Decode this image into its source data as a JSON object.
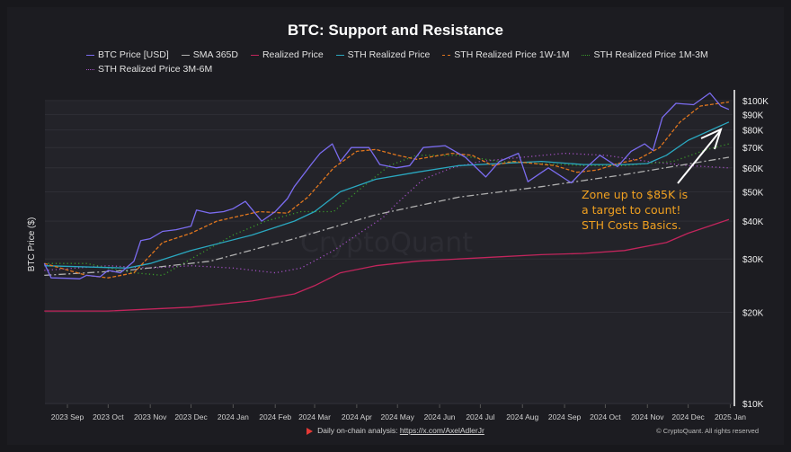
{
  "chart_data": {
    "type": "line",
    "title": "BTC: Support and Resistance",
    "ylabel": "BTC Price ($)",
    "xlabel": "",
    "yscale": "log",
    "ylim": [
      10000,
      110000
    ],
    "grid": true,
    "legend_placement": "top",
    "y_ticks": [
      {
        "v": 10000,
        "label": "$10K"
      },
      {
        "v": 20000,
        "label": "$20K"
      },
      {
        "v": 30000,
        "label": "$30K"
      },
      {
        "v": 40000,
        "label": "$40K"
      },
      {
        "v": 50000,
        "label": "$50K"
      },
      {
        "v": 60000,
        "label": "$60K"
      },
      {
        "v": 70000,
        "label": "$70K"
      },
      {
        "v": 80000,
        "label": "$80K"
      },
      {
        "v": 90000,
        "label": "$90K"
      },
      {
        "v": 100000,
        "label": "$100K"
      }
    ],
    "x_ticks": [
      {
        "d": "2023-09-01",
        "label": "2023 Sep"
      },
      {
        "d": "2023-10-01",
        "label": "2023 Oct"
      },
      {
        "d": "2023-11-01",
        "label": "2023 Nov"
      },
      {
        "d": "2023-12-01",
        "label": "2023 Dec"
      },
      {
        "d": "2024-01-01",
        "label": "2024 Jan"
      },
      {
        "d": "2024-02-01",
        "label": "2024 Feb"
      },
      {
        "d": "2024-03-01",
        "label": "2024 Mar"
      },
      {
        "d": "2024-04-01",
        "label": "2024 Apr"
      },
      {
        "d": "2024-05-01",
        "label": "2024 May"
      },
      {
        "d": "2024-06-01",
        "label": "2024 Jun"
      },
      {
        "d": "2024-07-01",
        "label": "2024 Jul"
      },
      {
        "d": "2024-08-01",
        "label": "2024 Aug"
      },
      {
        "d": "2024-09-01",
        "label": "2024 Sep"
      },
      {
        "d": "2024-10-01",
        "label": "2024 Oct"
      },
      {
        "d": "2024-11-01",
        "label": "2024 Nov"
      },
      {
        "d": "2024-12-01",
        "label": "2024 Dec"
      },
      {
        "d": "2025-01-01",
        "label": "2025 Jan"
      }
    ],
    "series": [
      {
        "name": "STH Realized Price 3M-6M",
        "color": "#a04fc0",
        "style": "dotted",
        "points": [
          [
            "2023-08-15",
            27500
          ],
          [
            "2023-10-01",
            28500
          ],
          [
            "2023-11-01",
            28000
          ],
          [
            "2023-12-01",
            28500
          ],
          [
            "2024-01-01",
            28000
          ],
          [
            "2024-02-01",
            27000
          ],
          [
            "2024-02-20",
            28000
          ],
          [
            "2024-03-15",
            32000
          ],
          [
            "2024-04-01",
            36000
          ],
          [
            "2024-04-20",
            41000
          ],
          [
            "2024-05-01",
            46000
          ],
          [
            "2024-05-20",
            55000
          ],
          [
            "2024-06-10",
            60000
          ],
          [
            "2024-07-01",
            63000
          ],
          [
            "2024-08-01",
            65000
          ],
          [
            "2024-09-01",
            67000
          ],
          [
            "2024-10-01",
            66000
          ],
          [
            "2024-11-01",
            63000
          ],
          [
            "2024-12-01",
            61000
          ],
          [
            "2024-12-31",
            60000
          ]
        ]
      },
      {
        "name": "STH Realized Price 1M-3M",
        "color": "#3a9a2a",
        "style": "dotted",
        "points": [
          [
            "2023-08-15",
            29000
          ],
          [
            "2023-09-15",
            29000
          ],
          [
            "2023-10-01",
            28000
          ],
          [
            "2023-10-20",
            27000
          ],
          [
            "2023-11-10",
            26500
          ],
          [
            "2023-12-01",
            30000
          ],
          [
            "2024-01-01",
            36000
          ],
          [
            "2024-01-25",
            40000
          ],
          [
            "2024-02-20",
            43000
          ],
          [
            "2024-03-15",
            43000
          ],
          [
            "2024-04-01",
            50000
          ],
          [
            "2024-04-25",
            61000
          ],
          [
            "2024-05-15",
            66000
          ],
          [
            "2024-06-15",
            66000
          ],
          [
            "2024-07-15",
            63000
          ],
          [
            "2024-08-15",
            62000
          ],
          [
            "2024-09-15",
            61000
          ],
          [
            "2024-10-15",
            61000
          ],
          [
            "2024-11-01",
            62000
          ],
          [
            "2024-11-20",
            63000
          ],
          [
            "2024-12-15",
            69000
          ],
          [
            "2024-12-31",
            72000
          ]
        ]
      },
      {
        "name": "SMA 365D",
        "color": "#b0b0b0",
        "style": "dashdot",
        "points": [
          [
            "2023-08-15",
            26500
          ],
          [
            "2023-10-15",
            27500
          ],
          [
            "2023-12-15",
            29500
          ],
          [
            "2024-02-15",
            35000
          ],
          [
            "2024-04-15",
            42000
          ],
          [
            "2024-06-15",
            48000
          ],
          [
            "2024-08-15",
            52000
          ],
          [
            "2024-10-15",
            57000
          ],
          [
            "2024-12-31",
            65000
          ]
        ]
      },
      {
        "name": "Realized Price",
        "color": "#c2255c",
        "style": "solid",
        "points": [
          [
            "2023-08-15",
            20200
          ],
          [
            "2023-10-01",
            20200
          ],
          [
            "2023-12-01",
            20800
          ],
          [
            "2024-01-15",
            21800
          ],
          [
            "2024-02-15",
            23000
          ],
          [
            "2024-03-01",
            24500
          ],
          [
            "2024-03-20",
            27000
          ],
          [
            "2024-04-15",
            28500
          ],
          [
            "2024-05-15",
            29500
          ],
          [
            "2024-06-15",
            30000
          ],
          [
            "2024-07-15",
            30500
          ],
          [
            "2024-08-15",
            31000
          ],
          [
            "2024-09-15",
            31300
          ],
          [
            "2024-10-15",
            32000
          ],
          [
            "2024-11-15",
            34000
          ],
          [
            "2024-12-01",
            36500
          ],
          [
            "2024-12-31",
            40500
          ]
        ]
      },
      {
        "name": "STH Realized Price",
        "color": "#2aa8c0",
        "style": "solid",
        "points": [
          [
            "2023-08-15",
            28500
          ],
          [
            "2023-10-15",
            28000
          ],
          [
            "2023-11-01",
            29000
          ],
          [
            "2023-12-01",
            32000
          ],
          [
            "2024-01-15",
            36000
          ],
          [
            "2024-02-15",
            40000
          ],
          [
            "2024-03-01",
            43000
          ],
          [
            "2024-03-20",
            50000
          ],
          [
            "2024-04-15",
            55000
          ],
          [
            "2024-05-15",
            58000
          ],
          [
            "2024-06-15",
            61000
          ],
          [
            "2024-07-15",
            62000
          ],
          [
            "2024-08-15",
            63000
          ],
          [
            "2024-09-15",
            61500
          ],
          [
            "2024-10-15",
            61500
          ],
          [
            "2024-11-01",
            62000
          ],
          [
            "2024-11-15",
            66000
          ],
          [
            "2024-12-01",
            74000
          ],
          [
            "2024-12-31",
            85000
          ]
        ]
      },
      {
        "name": "STH Realized Price 1W-1M",
        "color": "#e0761e",
        "style": "dashed",
        "points": [
          [
            "2023-08-15",
            29000
          ],
          [
            "2023-09-15",
            26500
          ],
          [
            "2023-10-01",
            26000
          ],
          [
            "2023-10-20",
            27000
          ],
          [
            "2023-11-10",
            34000
          ],
          [
            "2023-12-01",
            36500
          ],
          [
            "2023-12-20",
            40000
          ],
          [
            "2024-01-20",
            43000
          ],
          [
            "2024-02-10",
            42500
          ],
          [
            "2024-02-25",
            48000
          ],
          [
            "2024-03-15",
            60000
          ],
          [
            "2024-04-01",
            68000
          ],
          [
            "2024-04-15",
            69000
          ],
          [
            "2024-05-01",
            66000
          ],
          [
            "2024-05-15",
            64000
          ],
          [
            "2024-06-10",
            67000
          ],
          [
            "2024-06-25",
            66000
          ],
          [
            "2024-07-10",
            61000
          ],
          [
            "2024-07-25",
            63000
          ],
          [
            "2024-08-10",
            62000
          ],
          [
            "2024-08-25",
            61000
          ],
          [
            "2024-09-10",
            58000
          ],
          [
            "2024-09-25",
            59000
          ],
          [
            "2024-10-10",
            62000
          ],
          [
            "2024-10-25",
            64000
          ],
          [
            "2024-11-10",
            70000
          ],
          [
            "2024-11-25",
            85000
          ],
          [
            "2024-12-10",
            96000
          ],
          [
            "2024-12-31",
            99000
          ]
        ]
      },
      {
        "name": "BTC Price [USD]",
        "color": "#7b6cf0",
        "style": "solid",
        "points": [
          [
            "2023-08-15",
            29000
          ],
          [
            "2023-08-20",
            26000
          ],
          [
            "2023-09-01",
            25900
          ],
          [
            "2023-09-10",
            25800
          ],
          [
            "2023-09-15",
            26500
          ],
          [
            "2023-09-25",
            26200
          ],
          [
            "2023-10-01",
            27500
          ],
          [
            "2023-10-10",
            27000
          ],
          [
            "2023-10-20",
            29500
          ],
          [
            "2023-10-25",
            34500
          ],
          [
            "2023-11-01",
            35000
          ],
          [
            "2023-11-10",
            37000
          ],
          [
            "2023-11-20",
            37500
          ],
          [
            "2023-12-01",
            38500
          ],
          [
            "2023-12-05",
            43500
          ],
          [
            "2023-12-15",
            42500
          ],
          [
            "2023-12-25",
            43000
          ],
          [
            "2024-01-01",
            44000
          ],
          [
            "2024-01-10",
            46500
          ],
          [
            "2024-01-22",
            40000
          ],
          [
            "2024-02-01",
            43000
          ],
          [
            "2024-02-10",
            47500
          ],
          [
            "2024-02-15",
            52000
          ],
          [
            "2024-02-28",
            62000
          ],
          [
            "2024-03-05",
            67000
          ],
          [
            "2024-03-14",
            72000
          ],
          [
            "2024-03-20",
            63000
          ],
          [
            "2024-03-28",
            70000
          ],
          [
            "2024-04-10",
            70000
          ],
          [
            "2024-04-18",
            61500
          ],
          [
            "2024-04-30",
            60000
          ],
          [
            "2024-05-10",
            61000
          ],
          [
            "2024-05-20",
            70000
          ],
          [
            "2024-06-05",
            71000
          ],
          [
            "2024-06-20",
            65000
          ],
          [
            "2024-07-05",
            56000
          ],
          [
            "2024-07-15",
            63000
          ],
          [
            "2024-07-29",
            67000
          ],
          [
            "2024-08-05",
            54000
          ],
          [
            "2024-08-20",
            60000
          ],
          [
            "2024-09-06",
            53500
          ],
          [
            "2024-09-15",
            59000
          ],
          [
            "2024-09-27",
            66000
          ],
          [
            "2024-10-10",
            60500
          ],
          [
            "2024-10-20",
            68000
          ],
          [
            "2024-10-30",
            72000
          ],
          [
            "2024-11-05",
            68500
          ],
          [
            "2024-11-12",
            88000
          ],
          [
            "2024-11-22",
            98000
          ],
          [
            "2024-12-05",
            97000
          ],
          [
            "2024-12-17",
            106000
          ],
          [
            "2024-12-25",
            96000
          ],
          [
            "2024-12-31",
            93500
          ]
        ]
      }
    ],
    "annotation": {
      "lines": [
        "Zone up to $85K is",
        "a target to count!",
        "STH Costs Basics."
      ],
      "color": "#f0a020"
    }
  },
  "legend": [
    {
      "label": "BTC Price [USD]",
      "color": "#7b6cf0",
      "style": "solid"
    },
    {
      "label": "SMA 365D",
      "color": "#b0b0b0",
      "style": "solid"
    },
    {
      "label": "Realized Price",
      "color": "#c2255c",
      "style": "solid"
    },
    {
      "label": "STH Realized Price",
      "color": "#2aa8c0",
      "style": "solid"
    },
    {
      "label": "STH Realized Price 1W-1M",
      "color": "#e0761e",
      "style": "dashed"
    },
    {
      "label": "STH Realized Price 1M-3M",
      "color": "#3a9a2a",
      "style": "dotted"
    },
    {
      "label": "STH Realized Price 3M-6M",
      "color": "#a04fc0",
      "style": "dotted"
    }
  ],
  "watermark": "CryptoQuant",
  "footer": {
    "text": "Daily on-chain analysis: ",
    "link": "https://x.com/AxelAdlerJr",
    "copyright": "© CryptoQuant. All rights reserved"
  }
}
